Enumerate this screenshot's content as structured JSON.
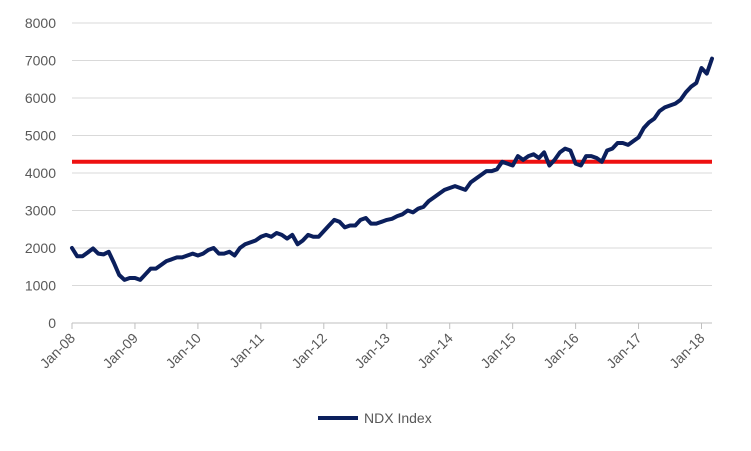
{
  "chart_data": {
    "type": "line",
    "x_ticks": [
      "Jan-08",
      "Jan-09",
      "Jan-10",
      "Jan-11",
      "Jan-12",
      "Jan-13",
      "Jan-14",
      "Jan-15",
      "Jan-16",
      "Jan-17",
      "Jan-18"
    ],
    "y_ticks": [
      "0",
      "1000",
      "2000",
      "3000",
      "4000",
      "5000",
      "6000",
      "7000",
      "8000"
    ],
    "ylim": [
      0,
      8000
    ],
    "xlim": [
      "2008-01",
      "2018-03"
    ],
    "grid": "horizontal",
    "legend_position": "bottom",
    "series": [
      {
        "name": "NDX Index",
        "color": "#0b1f5c",
        "x": [
          "2008-01",
          "2008-02",
          "2008-03",
          "2008-04",
          "2008-05",
          "2008-06",
          "2008-07",
          "2008-08",
          "2008-09",
          "2008-10",
          "2008-11",
          "2008-12",
          "2009-01",
          "2009-02",
          "2009-03",
          "2009-04",
          "2009-05",
          "2009-06",
          "2009-07",
          "2009-08",
          "2009-09",
          "2009-10",
          "2009-11",
          "2009-12",
          "2010-01",
          "2010-02",
          "2010-03",
          "2010-04",
          "2010-05",
          "2010-06",
          "2010-07",
          "2010-08",
          "2010-09",
          "2010-10",
          "2010-11",
          "2010-12",
          "2011-01",
          "2011-02",
          "2011-03",
          "2011-04",
          "2011-05",
          "2011-06",
          "2011-07",
          "2011-08",
          "2011-09",
          "2011-10",
          "2011-11",
          "2011-12",
          "2012-01",
          "2012-02",
          "2012-03",
          "2012-04",
          "2012-05",
          "2012-06",
          "2012-07",
          "2012-08",
          "2012-09",
          "2012-10",
          "2012-11",
          "2012-12",
          "2013-01",
          "2013-02",
          "2013-03",
          "2013-04",
          "2013-05",
          "2013-06",
          "2013-07",
          "2013-08",
          "2013-09",
          "2013-10",
          "2013-11",
          "2013-12",
          "2014-01",
          "2014-02",
          "2014-03",
          "2014-04",
          "2014-05",
          "2014-06",
          "2014-07",
          "2014-08",
          "2014-09",
          "2014-10",
          "2014-11",
          "2014-12",
          "2015-01",
          "2015-02",
          "2015-03",
          "2015-04",
          "2015-05",
          "2015-06",
          "2015-07",
          "2015-08",
          "2015-09",
          "2015-10",
          "2015-11",
          "2015-12",
          "2016-01",
          "2016-02",
          "2016-03",
          "2016-04",
          "2016-05",
          "2016-06",
          "2016-07",
          "2016-08",
          "2016-09",
          "2016-10",
          "2016-11",
          "2016-12",
          "2017-01",
          "2017-02",
          "2017-03",
          "2017-04",
          "2017-05",
          "2017-06",
          "2017-07",
          "2017-08",
          "2017-09",
          "2017-10",
          "2017-11",
          "2017-12",
          "2018-01",
          "2018-02",
          "2018-03"
        ],
        "values": [
          2000,
          1780,
          1780,
          1880,
          1990,
          1850,
          1830,
          1900,
          1600,
          1280,
          1150,
          1200,
          1200,
          1150,
          1300,
          1450,
          1450,
          1550,
          1650,
          1700,
          1750,
          1750,
          1800,
          1850,
          1800,
          1850,
          1950,
          2000,
          1850,
          1850,
          1900,
          1800,
          2000,
          2100,
          2150,
          2200,
          2300,
          2350,
          2300,
          2400,
          2350,
          2250,
          2350,
          2100,
          2200,
          2350,
          2300,
          2300,
          2450,
          2600,
          2750,
          2700,
          2550,
          2600,
          2600,
          2750,
          2800,
          2650,
          2650,
          2700,
          2750,
          2780,
          2850,
          2900,
          3000,
          2950,
          3050,
          3100,
          3250,
          3350,
          3450,
          3550,
          3600,
          3650,
          3600,
          3550,
          3750,
          3850,
          3950,
          4050,
          4050,
          4100,
          4300,
          4250,
          4200,
          4450,
          4350,
          4450,
          4500,
          4400,
          4550,
          4200,
          4350,
          4550,
          4650,
          4600,
          4250,
          4200,
          4450,
          4450,
          4400,
          4300,
          4600,
          4650,
          4800,
          4800,
          4750,
          4850,
          4950,
          5200,
          5350,
          5450,
          5650,
          5750,
          5800,
          5850,
          5950,
          6150,
          6300,
          6400,
          6800,
          6650,
          7050
        ]
      }
    ],
    "reference_line": {
      "y": 4300,
      "color": "#ee1111"
    }
  }
}
